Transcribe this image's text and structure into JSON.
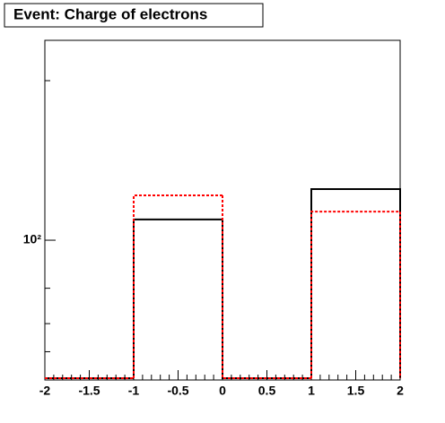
{
  "chart_data": {
    "type": "histogram",
    "title": "Event: Charge of electrons",
    "bins": [
      -2,
      -1,
      0,
      1,
      2
    ],
    "series": [
      {
        "color": "#000000",
        "dash": "none",
        "values": [
          0,
          135,
          0,
          209
        ]
      },
      {
        "color": "#ff0000",
        "dash": "3,2",
        "values": [
          0,
          191,
          0,
          151
        ]
      }
    ],
    "xlim": [
      -2,
      2
    ],
    "xticks": [
      -2,
      -1.5,
      -1,
      -0.5,
      0,
      0.5,
      1,
      1.5,
      2
    ],
    "xminor_ticks": [
      -1.9,
      -1.8,
      -1.7,
      -1.6,
      -1.4,
      -1.3,
      -1.2,
      -1.1,
      -0.9,
      -0.8,
      -0.7,
      -0.6,
      -0.4,
      -0.3,
      -0.2,
      -0.1,
      0.1,
      0.2,
      0.3,
      0.4,
      0.6,
      0.7,
      0.8,
      0.9,
      1.1,
      1.2,
      1.3,
      1.4,
      1.6,
      1.7,
      1.8,
      1.9
    ],
    "ylim": [
      13.3,
      1790
    ],
    "yscale": "log",
    "yticks": [
      {
        "value": 100,
        "label": "10²"
      }
    ],
    "yminor_ticks": [
      20,
      30,
      50,
      1000
    ]
  }
}
